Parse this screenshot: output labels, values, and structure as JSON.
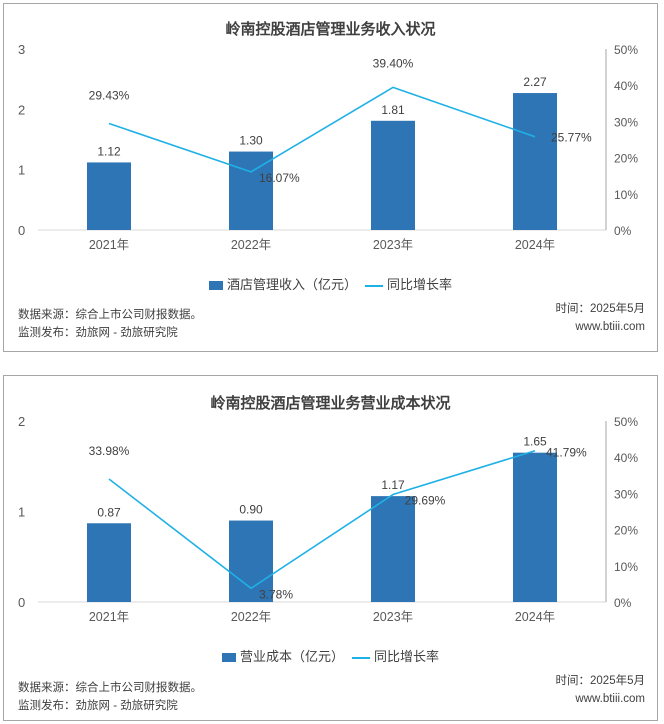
{
  "footer": {
    "source": "数据来源：综合上市公司财报数据。",
    "publisher": "监测发布：劲旅网 - 劲旅研究院",
    "time": "时间：2025年5月",
    "website": "www.btiii.com"
  },
  "colors": {
    "bar": "#2e75b6",
    "line": "#1fb1e6",
    "axis": "#d9d9d9",
    "right_axis": "#a6a6a6"
  },
  "chart_data": [
    {
      "type": "bar",
      "title": "岭南控股酒店管理业务收入状况",
      "categories": [
        "2021年",
        "2022年",
        "2023年",
        "2024年"
      ],
      "series": [
        {
          "name": "酒店管理收入（亿元）",
          "type": "bar",
          "axis": "left",
          "values": [
            1.12,
            1.3,
            1.81,
            2.27
          ],
          "labels": [
            "1.12",
            "1.30",
            "1.81",
            "2.27"
          ]
        },
        {
          "name": "同比增长率",
          "type": "line",
          "axis": "right",
          "values": [
            29.43,
            16.07,
            39.4,
            25.77
          ],
          "labels": [
            "29.43%",
            "16.07%",
            "39.40%",
            "25.77%"
          ]
        }
      ],
      "ylim": [
        0,
        3
      ],
      "yticks": [
        "0",
        "1",
        "2",
        "3"
      ],
      "y2lim": [
        0,
        50
      ],
      "y2ticks": [
        "0%",
        "10%",
        "20%",
        "30%",
        "40%",
        "50%"
      ],
      "legend": [
        "酒店管理收入（亿元）",
        "同比增长率"
      ],
      "legend_position": "bottom",
      "grid": false
    },
    {
      "type": "bar",
      "title": "岭南控股酒店管理业务营业成本状况",
      "categories": [
        "2021年",
        "2022年",
        "2023年",
        "2024年"
      ],
      "series": [
        {
          "name": "营业成本（亿元）",
          "type": "bar",
          "axis": "left",
          "values": [
            0.87,
            0.9,
            1.17,
            1.65
          ],
          "labels": [
            "0.87",
            "0.90",
            "1.17",
            "1.65"
          ]
        },
        {
          "name": "同比增长率",
          "type": "line",
          "axis": "right",
          "values": [
            33.98,
            3.78,
            29.69,
            41.79
          ],
          "labels": [
            "33.98%",
            "3.78%",
            "29.69%",
            "41.79%"
          ]
        }
      ],
      "ylim": [
        0,
        2
      ],
      "yticks": [
        "0",
        "1",
        "2"
      ],
      "y2lim": [
        0,
        50
      ],
      "y2ticks": [
        "0%",
        "10%",
        "20%",
        "30%",
        "40%",
        "50%"
      ],
      "legend": [
        "营业成本（亿元）",
        "同比增长率"
      ],
      "legend_position": "bottom",
      "grid": false
    }
  ]
}
